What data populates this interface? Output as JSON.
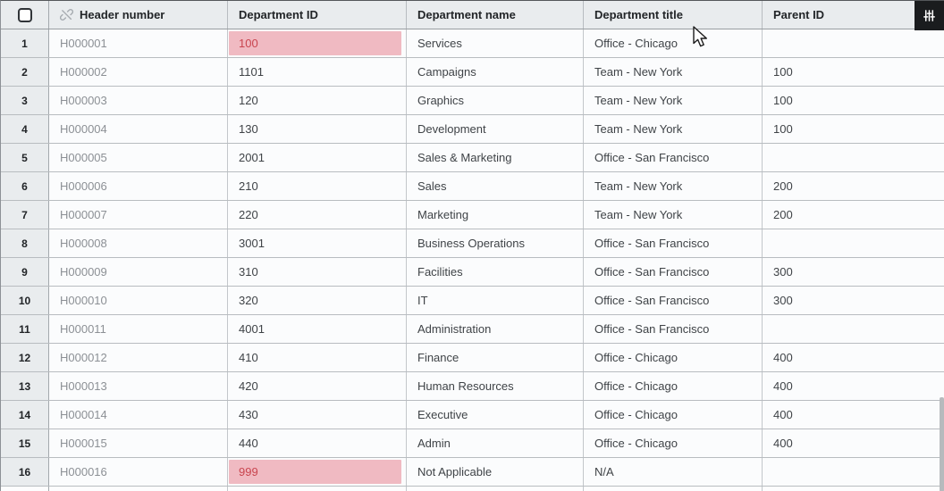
{
  "table": {
    "select_all_checked": false,
    "columns": [
      {
        "label": "Header number"
      },
      {
        "label": "Department ID"
      },
      {
        "label": "Department name"
      },
      {
        "label": "Department title"
      },
      {
        "label": "Parent ID"
      }
    ],
    "rows": [
      {
        "num": "1",
        "header_number": "H000001",
        "department_id": "100",
        "department_id_error": true,
        "department_name": "Services",
        "department_title": "Office - Chicago",
        "parent_id": ""
      },
      {
        "num": "2",
        "header_number": "H000002",
        "department_id": "1101",
        "department_id_error": false,
        "department_name": "Campaigns",
        "department_title": "Team - New York",
        "parent_id": "100"
      },
      {
        "num": "3",
        "header_number": "H000003",
        "department_id": "120",
        "department_id_error": false,
        "department_name": "Graphics",
        "department_title": "Team - New York",
        "parent_id": "100"
      },
      {
        "num": "4",
        "header_number": "H000004",
        "department_id": "130",
        "department_id_error": false,
        "department_name": "Development",
        "department_title": "Team - New York",
        "parent_id": "100"
      },
      {
        "num": "5",
        "header_number": "H000005",
        "department_id": "2001",
        "department_id_error": false,
        "department_name": "Sales & Marketing",
        "department_title": "Office - San Francisco",
        "parent_id": ""
      },
      {
        "num": "6",
        "header_number": "H000006",
        "department_id": "210",
        "department_id_error": false,
        "department_name": "Sales",
        "department_title": "Team - New York",
        "parent_id": "200"
      },
      {
        "num": "7",
        "header_number": "H000007",
        "department_id": "220",
        "department_id_error": false,
        "department_name": "Marketing",
        "department_title": "Team - New York",
        "parent_id": "200"
      },
      {
        "num": "8",
        "header_number": "H000008",
        "department_id": "3001",
        "department_id_error": false,
        "department_name": "Business Operations",
        "department_title": "Office - San Francisco",
        "parent_id": ""
      },
      {
        "num": "9",
        "header_number": "H000009",
        "department_id": "310",
        "department_id_error": false,
        "department_name": "Facilities",
        "department_title": "Office - San Francisco",
        "parent_id": "300"
      },
      {
        "num": "10",
        "header_number": "H000010",
        "department_id": "320",
        "department_id_error": false,
        "department_name": "IT",
        "department_title": "Office - San Francisco",
        "parent_id": "300"
      },
      {
        "num": "11",
        "header_number": "H000011",
        "department_id": "4001",
        "department_id_error": false,
        "department_name": "Administration",
        "department_title": "Office - San Francisco",
        "parent_id": ""
      },
      {
        "num": "12",
        "header_number": "H000012",
        "department_id": "410",
        "department_id_error": false,
        "department_name": "Finance",
        "department_title": "Office - Chicago",
        "parent_id": "400"
      },
      {
        "num": "13",
        "header_number": "H000013",
        "department_id": "420",
        "department_id_error": false,
        "department_name": "Human Resources",
        "department_title": "Office - Chicago",
        "parent_id": "400"
      },
      {
        "num": "14",
        "header_number": "H000014",
        "department_id": "430",
        "department_id_error": false,
        "department_name": "Executive",
        "department_title": "Office - Chicago",
        "parent_id": "400"
      },
      {
        "num": "15",
        "header_number": "H000015",
        "department_id": "440",
        "department_id_error": false,
        "department_name": "Admin",
        "department_title": "Office - Chicago",
        "parent_id": "400"
      },
      {
        "num": "16",
        "header_number": "H000016",
        "department_id": "999",
        "department_id_error": true,
        "department_name": "Not Applicable",
        "department_title": "N/A",
        "parent_id": ""
      }
    ]
  },
  "icons": {
    "header_number_icon": "unlink-icon",
    "settings_button_icon": "sliders-icon"
  },
  "colors": {
    "error_cell_bg": "#f0bac2",
    "error_cell_text": "#c9454f",
    "header_bg": "#e9ecee",
    "settings_button_bg": "#1a1c1e"
  }
}
